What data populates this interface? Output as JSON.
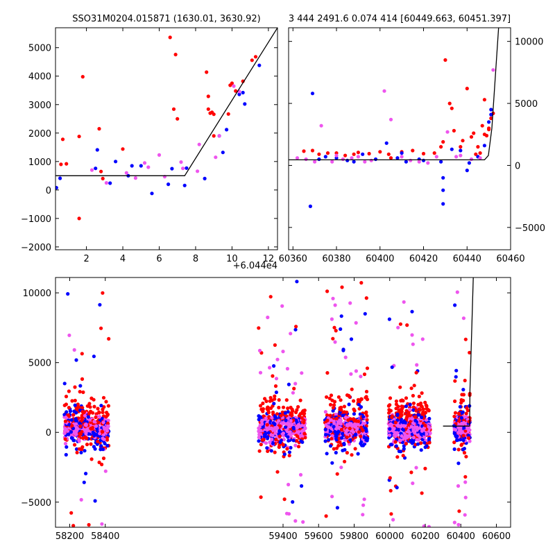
{
  "chart_data": [
    {
      "type": "scatter",
      "title": "SSO31M0204.015871 (1630.01, 3630.92)",
      "xlim": [
        0.3,
        12.5
      ],
      "ylim": [
        -2100,
        5700
      ],
      "xticks": [
        2,
        4,
        6,
        8,
        10,
        12
      ],
      "xtick_labels": [
        "2",
        "4",
        "6",
        "8",
        "10",
        "12"
      ],
      "yticks": [
        -2000,
        -1000,
        0,
        1000,
        2000,
        3000,
        4000,
        5000
      ],
      "ytick_labels": [
        "−2000",
        "−1000",
        "0",
        "1000",
        "2000",
        "3000",
        "4000",
        "5000"
      ],
      "offset_label": "+6.044e4",
      "model_line": {
        "x": [
          0.3,
          7.4,
          12.5
        ],
        "y": [
          500,
          500,
          5700
        ]
      },
      "series": [
        {
          "color": "#ff0000",
          "points": [
            [
              0.6,
              900
            ],
            [
              0.9,
              920
            ],
            [
              0.7,
              1780
            ],
            [
              1.6,
              1880
            ],
            [
              1.8,
              3980
            ],
            [
              1.6,
              -1000
            ],
            [
              2.7,
              2150
            ],
            [
              2.8,
              650
            ],
            [
              2.9,
              400
            ],
            [
              4.0,
              1440
            ],
            [
              6.6,
              5360
            ],
            [
              6.9,
              4760
            ],
            [
              6.8,
              2840
            ],
            [
              7.0,
              2500
            ],
            [
              8.6,
              4140
            ],
            [
              8.7,
              3290
            ],
            [
              8.7,
              2840
            ],
            [
              8.8,
              2700
            ],
            [
              8.9,
              2730
            ],
            [
              9.0,
              2660
            ],
            [
              9.0,
              1900
            ],
            [
              9.8,
              2670
            ],
            [
              9.9,
              3680
            ],
            [
              10.0,
              3750
            ],
            [
              10.2,
              3480
            ],
            [
              10.6,
              3820
            ],
            [
              11.1,
              4560
            ],
            [
              11.3,
              4680
            ]
          ]
        },
        {
          "color": "#0000ff",
          "points": [
            [
              0.35,
              80
            ],
            [
              0.55,
              410
            ],
            [
              2.5,
              760
            ],
            [
              2.6,
              1410
            ],
            [
              3.3,
              240
            ],
            [
              3.6,
              1000
            ],
            [
              4.3,
              500
            ],
            [
              4.5,
              850
            ],
            [
              5.0,
              850
            ],
            [
              5.6,
              -120
            ],
            [
              6.5,
              200
            ],
            [
              6.7,
              750
            ],
            [
              7.4,
              160
            ],
            [
              7.5,
              770
            ],
            [
              8.5,
              400
            ],
            [
              9.3,
              1900
            ],
            [
              9.5,
              1320
            ],
            [
              9.7,
              2120
            ],
            [
              10.4,
              3360
            ],
            [
              10.6,
              3420
            ],
            [
              10.7,
              3020
            ],
            [
              11.5,
              4380
            ]
          ]
        },
        {
          "color": "#ee55ee",
          "points": [
            [
              2.3,
              700
            ],
            [
              3.1,
              250
            ],
            [
              4.2,
              600
            ],
            [
              4.7,
              420
            ],
            [
              5.2,
              950
            ],
            [
              5.4,
              800
            ],
            [
              6.0,
              1230
            ],
            [
              6.3,
              470
            ],
            [
              7.2,
              980
            ],
            [
              7.3,
              760
            ],
            [
              8.1,
              660
            ],
            [
              8.2,
              1600
            ],
            [
              9.1,
              1150
            ],
            [
              9.3,
              1900
            ],
            [
              10.1,
              3650
            ],
            [
              10.4,
              3460
            ]
          ]
        }
      ]
    },
    {
      "type": "scatter",
      "title": "3 444 2491.6 0.074 414 [60449.663, 60451.397]",
      "xlim": [
        60358,
        60460
      ],
      "ylim": [
        -6800,
        11100
      ],
      "xticks": [
        60360,
        60380,
        60400,
        60420,
        60440,
        60460
      ],
      "xtick_labels": [
        "60360",
        "60380",
        "60400",
        "60420",
        "60440",
        "60460"
      ],
      "yticks": [
        -5000,
        0,
        5000,
        10000
      ],
      "ytick_labels": [
        "−5000",
        "0",
        "5000",
        "10000"
      ],
      "y_axis_side": "right",
      "model_line": {
        "x": [
          60358,
          60448,
          60449.8,
          60451.4,
          60454.5
        ],
        "y": [
          450,
          450,
          800,
          3000,
          11100
        ]
      },
      "series": [
        {
          "color": "#ff0000",
          "points": [
            [
              60365,
              1150
            ],
            [
              60369,
              1200
            ],
            [
              60372,
              900
            ],
            [
              60376,
              1000
            ],
            [
              60380,
              1000
            ],
            [
              60384,
              800
            ],
            [
              60388,
              900
            ],
            [
              60390,
              1050
            ],
            [
              60395,
              950
            ],
            [
              60400,
              1100
            ],
            [
              60404,
              900
            ],
            [
              60405,
              600
            ],
            [
              60410,
              1100
            ],
            [
              60415,
              1200
            ],
            [
              60420,
              950
            ],
            [
              60425,
              1000
            ],
            [
              60428,
              1500
            ],
            [
              60429,
              1900
            ],
            [
              60430,
              8500
            ],
            [
              60432,
              5000
            ],
            [
              60433,
              4600
            ],
            [
              60434,
              2800
            ],
            [
              60437,
              1500
            ],
            [
              60438,
              2000
            ],
            [
              60440,
              6200
            ],
            [
              60442,
              2300
            ],
            [
              60443,
              2600
            ],
            [
              60444,
              900
            ],
            [
              60445,
              1500
            ],
            [
              60446,
              1000
            ],
            [
              60447,
              3200
            ],
            [
              60448,
              2500
            ],
            [
              60449,
              2400
            ],
            [
              60450,
              2900
            ],
            [
              60451,
              3800
            ],
            [
              60452,
              4200
            ],
            [
              60448,
              5300
            ],
            [
              60450,
              3000
            ]
          ]
        },
        {
          "color": "#0000ff",
          "points": [
            [
              60368,
              -3300
            ],
            [
              60369,
              5800
            ],
            [
              60372,
              500
            ],
            [
              60375,
              700
            ],
            [
              60380,
              600
            ],
            [
              60385,
              400
            ],
            [
              60388,
              300
            ],
            [
              60392,
              900
            ],
            [
              60398,
              500
            ],
            [
              60403,
              1800
            ],
            [
              60408,
              600
            ],
            [
              60410,
              1000
            ],
            [
              60412,
              300
            ],
            [
              60418,
              500
            ],
            [
              60420,
              400
            ],
            [
              60428,
              300
            ],
            [
              60429,
              -2000
            ],
            [
              60429,
              -3100
            ],
            [
              60429,
              -1000
            ],
            [
              60433,
              1300
            ],
            [
              60437,
              1200
            ],
            [
              60440,
              -400
            ],
            [
              60441,
              200
            ],
            [
              60445,
              700
            ],
            [
              60448,
              1600
            ],
            [
              60450,
              3500
            ],
            [
              60451,
              4100
            ],
            [
              60451,
              4500
            ]
          ]
        },
        {
          "color": "#ee55ee",
          "points": [
            [
              60362,
              600
            ],
            [
              60366,
              500
            ],
            [
              60370,
              300
            ],
            [
              60373,
              3200
            ],
            [
              60378,
              300
            ],
            [
              60380,
              800
            ],
            [
              60383,
              500
            ],
            [
              60387,
              600
            ],
            [
              60390,
              700
            ],
            [
              60393,
              300
            ],
            [
              60396,
              400
            ],
            [
              60402,
              6000
            ],
            [
              60405,
              3700
            ],
            [
              60410,
              700
            ],
            [
              60414,
              400
            ],
            [
              60418,
              300
            ],
            [
              60422,
              200
            ],
            [
              60426,
              700
            ],
            [
              60431,
              2700
            ],
            [
              60435,
              700
            ],
            [
              60437,
              800
            ],
            [
              60442,
              500
            ],
            [
              60446,
              600
            ],
            [
              60452,
              7700
            ]
          ]
        }
      ]
    },
    {
      "type": "scatter",
      "xlim": [
        58120,
        60680
      ],
      "ylim": [
        -6800,
        11100
      ],
      "xticks": [
        58200,
        58400,
        59400,
        59600,
        59800,
        60000,
        60200,
        60400,
        60600
      ],
      "xtick_labels": [
        "58200",
        "58400",
        "59400",
        "59600",
        "59800",
        "60000",
        "60200",
        "60400",
        "60600"
      ],
      "yticks": [
        -5000,
        0,
        5000,
        10000
      ],
      "ytick_labels": [
        "−5000",
        "0",
        "5000",
        "10000"
      ],
      "model_line": {
        "x": [
          60300,
          60448,
          60449.8,
          60451.4,
          60470
        ],
        "y": [
          450,
          450,
          800,
          3000,
          11100
        ]
      },
      "seasons": [
        {
          "start": 58170,
          "end": 58420,
          "points": 560
        },
        {
          "start": 59262,
          "end": 59525,
          "points": 560
        },
        {
          "start": 59635,
          "end": 59875,
          "points": 540
        },
        {
          "start": 59993,
          "end": 60230,
          "points": 600
        },
        {
          "start": 60362,
          "end": 60452,
          "points": 260
        }
      ],
      "series_colors": [
        "#ff0000",
        "#0000ff",
        "#ee55ee"
      ]
    }
  ]
}
